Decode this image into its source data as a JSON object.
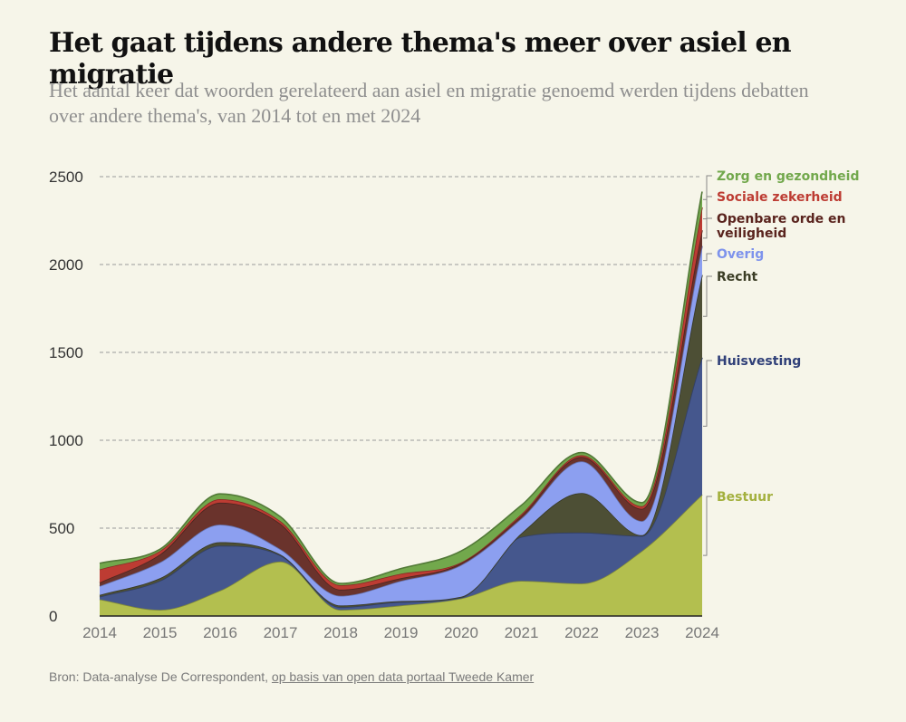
{
  "header": {
    "title": "Het gaat tijdens andere thema's meer over asiel en migratie",
    "subtitle": "Het aantal keer dat woorden gerelateerd aan asiel en migratie genoemd werden tijdens debatten over andere thema's, van 2014 tot en met 2024"
  },
  "source": {
    "prefix": "Bron: Data-analyse De Correspondent, ",
    "link_text": "op basis van open data portaal Tweede Kamer"
  },
  "chart_data": {
    "type": "area",
    "stacked": true,
    "title": "Het gaat tijdens andere thema's meer over asiel en migratie",
    "x": [
      "2014",
      "2015",
      "2016",
      "2017",
      "2018",
      "2019",
      "2020",
      "2021",
      "2022",
      "2023",
      "2024"
    ],
    "y_ticks": [
      "0",
      "500",
      "1000",
      "1500",
      "2000",
      "2500"
    ],
    "ylim": [
      0,
      2500
    ],
    "grid": "horizontal dashed",
    "series": [
      {
        "name": "Bestuur",
        "color": "#b3bf4f",
        "values": [
          95,
          35,
          145,
          310,
          35,
          60,
          100,
          200,
          185,
          370,
          690
        ]
      },
      {
        "name": "Huisvesting",
        "color": "#45578d",
        "values": [
          15,
          165,
          255,
          35,
          15,
          20,
          5,
          250,
          290,
          85,
          780
        ]
      },
      {
        "name": "Recht",
        "color": "#4d4f35",
        "values": [
          10,
          15,
          20,
          5,
          10,
          5,
          5,
          20,
          225,
          5,
          470
        ]
      },
      {
        "name": "Overig",
        "color": "#8c9ff0",
        "values": [
          50,
          90,
          100,
          30,
          55,
          115,
          180,
          85,
          180,
          80,
          165
        ]
      },
      {
        "name": "Openbare orde en veiligheid",
        "color": "#6a332c",
        "values": [
          20,
          45,
          125,
          145,
          35,
          15,
          10,
          15,
          25,
          70,
          90
        ]
      },
      {
        "name": "Sociale zekerheid",
        "color": "#bd3c33",
        "values": [
          75,
          20,
          20,
          15,
          25,
          25,
          5,
          10,
          10,
          15,
          130
        ]
      },
      {
        "name": "Zorg en gezondheid",
        "color": "#72a84c",
        "values": [
          35,
          10,
          30,
          25,
          10,
          30,
          65,
          50,
          15,
          20,
          90
        ]
      }
    ],
    "legend": "direct labels at right end"
  }
}
